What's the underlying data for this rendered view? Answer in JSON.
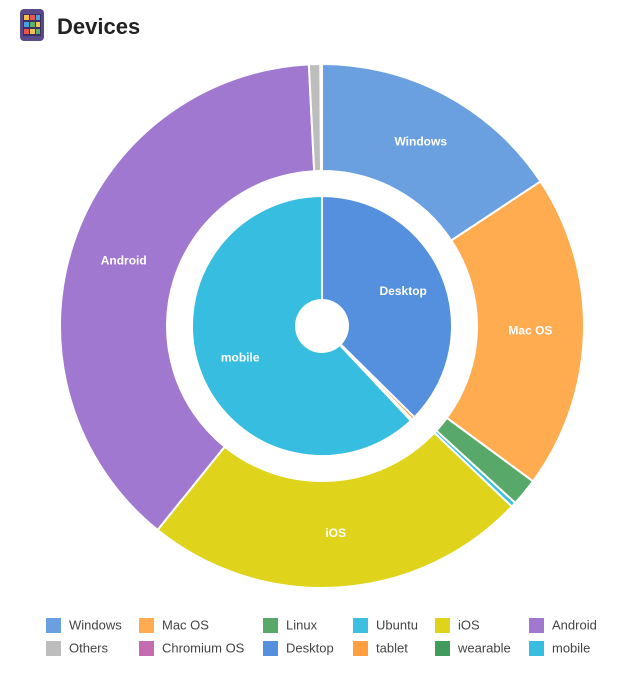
{
  "chart_data": {
    "type": "doughnut",
    "title": "Devices",
    "rings": [
      {
        "categories": [
          "Windows",
          "Mac OS",
          "Linux",
          "Ubuntu",
          "iOS",
          "Android",
          "Others",
          "Chromium OS"
        ],
        "colors": [
          "#6a9fe0",
          "#ffab4f",
          "#58a86a",
          "#3dbfe0",
          "#e0d31c",
          "#a178d0",
          "#bdbdbd",
          "#c56bb1"
        ],
        "values": [
          15.7,
          19.4,
          1.7,
          0.3,
          23.7,
          38.4,
          0.7,
          0.1
        ]
      },
      {
        "categories": [
          "Desktop",
          "tablet",
          "wearable",
          "mobile"
        ],
        "colors": [
          "#5490de",
          "#ff9f40",
          "#409b5c",
          "#36bde0"
        ],
        "values": [
          37.4,
          0.4,
          0.2,
          62
        ]
      }
    ]
  }
}
